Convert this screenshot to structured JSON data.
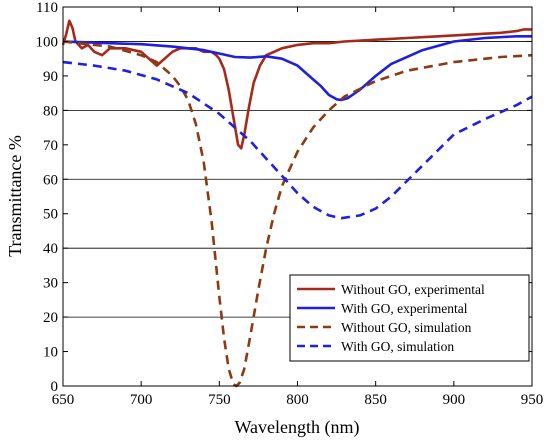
{
  "chart_data": {
    "type": "line",
    "xlabel": "Wavelength (nm)",
    "ylabel": "Transmittance %",
    "xlim": [
      650,
      950
    ],
    "ylim": [
      0,
      110
    ],
    "xticks": [
      650,
      700,
      750,
      800,
      850,
      900,
      950
    ],
    "yticks": [
      0,
      10,
      20,
      30,
      40,
      50,
      60,
      70,
      80,
      90,
      100,
      110
    ],
    "grid_y": [
      20,
      40,
      60,
      80,
      100
    ],
    "legend_position": "bottom-right",
    "series": [
      {
        "name": "Without GO, experimental",
        "color": "#a52a1a",
        "style": "solid",
        "x": [
          650,
          652,
          654,
          656,
          658,
          662,
          666,
          670,
          675,
          680,
          690,
          700,
          705,
          710,
          715,
          720,
          725,
          730,
          735,
          740,
          745,
          748,
          750,
          753,
          756,
          759,
          762,
          764,
          766,
          769,
          772,
          776,
          780,
          785,
          790,
          800,
          810,
          820,
          830,
          850,
          870,
          890,
          910,
          930,
          940,
          945,
          950
        ],
        "y": [
          99,
          102,
          106,
          104,
          100,
          98,
          99,
          97,
          96,
          98,
          98,
          97,
          95,
          93,
          95,
          97,
          98,
          98,
          98,
          97,
          97,
          96,
          95,
          92,
          86,
          78,
          70,
          69,
          73,
          81,
          88,
          93,
          96,
          97,
          98,
          99,
          99.5,
          99.5,
          100,
          100.5,
          101,
          101.5,
          102,
          102.5,
          103,
          103.5,
          103.5
        ]
      },
      {
        "name": "With GO, experimental",
        "color": "#1f1fe0",
        "style": "solid",
        "x": [
          650,
          660,
          680,
          700,
          720,
          740,
          750,
          760,
          770,
          780,
          790,
          800,
          810,
          815,
          820,
          825,
          828,
          832,
          840,
          850,
          860,
          880,
          900,
          920,
          940,
          950
        ],
        "y": [
          100,
          99.8,
          99.5,
          99.2,
          98.5,
          97.5,
          96.5,
          95.5,
          95.3,
          95.7,
          95,
          93,
          89,
          87,
          84.5,
          83.2,
          83,
          83.5,
          86,
          90,
          93.5,
          97.5,
          100,
          101,
          101.5,
          101.5
        ]
      },
      {
        "name": "Without GO, simulation",
        "color": "#8b3a12",
        "style": "dashed",
        "x": [
          650,
          660,
          680,
          700,
          710,
          720,
          725,
          730,
          735,
          740,
          745,
          750,
          753,
          756,
          759,
          761,
          763,
          766,
          770,
          775,
          780,
          785,
          790,
          800,
          810,
          820,
          830,
          850,
          870,
          900,
          930,
          950
        ],
        "y": [
          100,
          99.5,
          98.5,
          96,
          94,
          90,
          87,
          83,
          76,
          65,
          48,
          26,
          14,
          5,
          0.5,
          0,
          1,
          5,
          15,
          28,
          40,
          50,
          58,
          68,
          75,
          80,
          84,
          88.5,
          91.5,
          94,
          95.5,
          96
        ]
      },
      {
        "name": "With GO, simulation",
        "color": "#1f1fe0",
        "style": "dashed",
        "x": [
          650,
          670,
          690,
          710,
          730,
          750,
          770,
          790,
          800,
          810,
          820,
          828,
          840,
          850,
          860,
          870,
          880,
          890,
          900,
          920,
          940,
          950
        ],
        "y": [
          94,
          93,
          91.5,
          89,
          85,
          79,
          71,
          61,
          56,
          52,
          49.5,
          48.7,
          49.5,
          51.5,
          55,
          59.5,
          64,
          68.5,
          73,
          77.5,
          81.5,
          84
        ]
      }
    ]
  }
}
